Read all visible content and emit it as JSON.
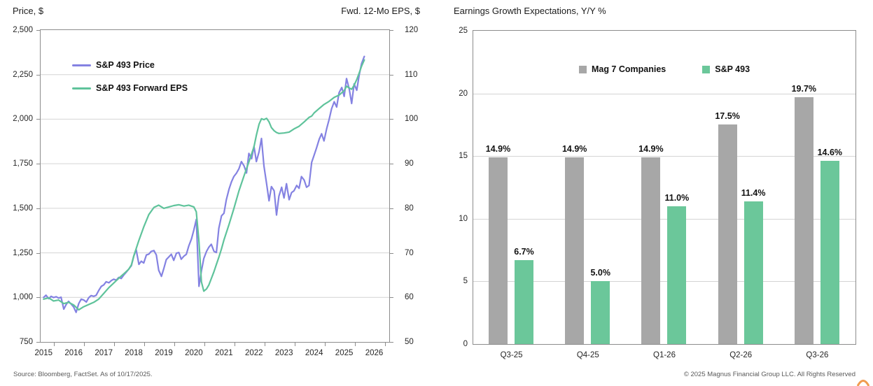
{
  "colors": {
    "price_line": "#8482E2",
    "eps_line": "#5FC39B",
    "bar_gray": "#A7A7A7",
    "bar_green": "#6BC79A",
    "gridline": "#D4D4D4",
    "frame": "#8C8C8C",
    "footer_text": "#595959",
    "logo_orange": "#F09C50"
  },
  "footer": {
    "source": "Source: Bloomberg, FactSet. As of 10/17/2025.",
    "copyright": "© 2025 Magnus Financial Group LLC. All Rights Reserved"
  },
  "chart_data": [
    {
      "type": "line",
      "title_left": "Price, $",
      "title_right": "Fwd. 12-Mo EPS, $",
      "legend_position": "top-left-inside",
      "grid": true,
      "x_range": [
        2014.9,
        2026.5
      ],
      "x_ticks": [
        "2015",
        "2016",
        "2017",
        "2018",
        "2019",
        "2020",
        "2021",
        "2022",
        "2023",
        "2024",
        "2025",
        "2026"
      ],
      "left_axis": {
        "min": 750,
        "max": 2500,
        "tick_values": [
          2500,
          2250,
          2000,
          1750,
          1500,
          1250,
          1000,
          750
        ],
        "tick_labels": [
          "2,500",
          "2,250",
          "2,000",
          "1,750",
          "1,500",
          "1,250",
          "1,000",
          "750"
        ]
      },
      "right_axis": {
        "min": 50,
        "max": 120,
        "tick_values": [
          120,
          110,
          100,
          90,
          80,
          70,
          60,
          50
        ],
        "tick_labels": [
          "120",
          "110",
          "100",
          "90",
          "80",
          "70",
          "60",
          "50"
        ]
      },
      "series": [
        {
          "name": "S&P 493 Price",
          "axis": "left",
          "color": "#8482E2",
          "data": [
            [
              2015.0,
              1000
            ],
            [
              2015.08,
              1012
            ],
            [
              2015.17,
              993
            ],
            [
              2015.25,
              1006
            ],
            [
              2015.33,
              999
            ],
            [
              2015.42,
              1004
            ],
            [
              2015.5,
              996
            ],
            [
              2015.58,
              1001
            ],
            [
              2015.67,
              934
            ],
            [
              2015.75,
              960
            ],
            [
              2015.83,
              978
            ],
            [
              2015.92,
              962
            ],
            [
              2016.0,
              946
            ],
            [
              2016.08,
              916
            ],
            [
              2016.17,
              966
            ],
            [
              2016.25,
              990
            ],
            [
              2016.33,
              986
            ],
            [
              2016.42,
              974
            ],
            [
              2016.5,
              998
            ],
            [
              2016.58,
              1010
            ],
            [
              2016.67,
              1006
            ],
            [
              2016.75,
              1012
            ],
            [
              2016.83,
              1038
            ],
            [
              2016.92,
              1062
            ],
            [
              2017.0,
              1070
            ],
            [
              2017.08,
              1088
            ],
            [
              2017.17,
              1082
            ],
            [
              2017.25,
              1094
            ],
            [
              2017.33,
              1102
            ],
            [
              2017.42,
              1097
            ],
            [
              2017.5,
              1112
            ],
            [
              2017.58,
              1106
            ],
            [
              2017.67,
              1126
            ],
            [
              2017.75,
              1142
            ],
            [
              2017.83,
              1158
            ],
            [
              2017.92,
              1178
            ],
            [
              2018.0,
              1232
            ],
            [
              2018.08,
              1268
            ],
            [
              2018.17,
              1185
            ],
            [
              2018.25,
              1203
            ],
            [
              2018.33,
              1193
            ],
            [
              2018.42,
              1238
            ],
            [
              2018.5,
              1243
            ],
            [
              2018.58,
              1258
            ],
            [
              2018.67,
              1263
            ],
            [
              2018.75,
              1238
            ],
            [
              2018.83,
              1152
            ],
            [
              2018.92,
              1118
            ],
            [
              2019.0,
              1162
            ],
            [
              2019.08,
              1212
            ],
            [
              2019.17,
              1228
            ],
            [
              2019.25,
              1242
            ],
            [
              2019.33,
              1208
            ],
            [
              2019.42,
              1248
            ],
            [
              2019.5,
              1252
            ],
            [
              2019.58,
              1214
            ],
            [
              2019.67,
              1232
            ],
            [
              2019.75,
              1242
            ],
            [
              2019.83,
              1288
            ],
            [
              2019.92,
              1328
            ],
            [
              2020.0,
              1378
            ],
            [
              2020.08,
              1438
            ],
            [
              2020.17,
              1062
            ],
            [
              2020.25,
              1148
            ],
            [
              2020.33,
              1218
            ],
            [
              2020.42,
              1258
            ],
            [
              2020.5,
              1282
            ],
            [
              2020.58,
              1298
            ],
            [
              2020.67,
              1258
            ],
            [
              2020.75,
              1252
            ],
            [
              2020.83,
              1388
            ],
            [
              2020.92,
              1458
            ],
            [
              2021.0,
              1472
            ],
            [
              2021.08,
              1548
            ],
            [
              2021.17,
              1608
            ],
            [
              2021.25,
              1648
            ],
            [
              2021.33,
              1678
            ],
            [
              2021.42,
              1698
            ],
            [
              2021.5,
              1722
            ],
            [
              2021.58,
              1762
            ],
            [
              2021.67,
              1738
            ],
            [
              2021.75,
              1698
            ],
            [
              2021.83,
              1808
            ],
            [
              2021.92,
              1778
            ],
            [
              2022.0,
              1848
            ],
            [
              2022.08,
              1762
            ],
            [
              2022.17,
              1818
            ],
            [
              2022.25,
              1892
            ],
            [
              2022.33,
              1738
            ],
            [
              2022.42,
              1638
            ],
            [
              2022.5,
              1542
            ],
            [
              2022.58,
              1622
            ],
            [
              2022.67,
              1598
            ],
            [
              2022.75,
              1462
            ],
            [
              2022.83,
              1568
            ],
            [
              2022.92,
              1618
            ],
            [
              2023.0,
              1558
            ],
            [
              2023.08,
              1638
            ],
            [
              2023.17,
              1548
            ],
            [
              2023.25,
              1588
            ],
            [
              2023.33,
              1598
            ],
            [
              2023.42,
              1628
            ],
            [
              2023.5,
              1612
            ],
            [
              2023.58,
              1678
            ],
            [
              2023.67,
              1658
            ],
            [
              2023.75,
              1618
            ],
            [
              2023.83,
              1628
            ],
            [
              2023.92,
              1758
            ],
            [
              2024.0,
              1798
            ],
            [
              2024.08,
              1838
            ],
            [
              2024.17,
              1888
            ],
            [
              2024.25,
              1918
            ],
            [
              2024.33,
              1878
            ],
            [
              2024.42,
              1948
            ],
            [
              2024.5,
              1998
            ],
            [
              2024.58,
              2058
            ],
            [
              2024.67,
              2098
            ],
            [
              2024.75,
              2068
            ],
            [
              2024.83,
              2148
            ],
            [
              2024.92,
              2178
            ],
            [
              2025.0,
              2128
            ],
            [
              2025.08,
              2228
            ],
            [
              2025.17,
              2168
            ],
            [
              2025.25,
              2088
            ],
            [
              2025.33,
              2198
            ],
            [
              2025.42,
              2162
            ],
            [
              2025.5,
              2248
            ],
            [
              2025.58,
              2312
            ],
            [
              2025.67,
              2352
            ]
          ]
        },
        {
          "name": "S&P 493 Forward EPS",
          "axis": "right",
          "color": "#5FC39B",
          "data": [
            [
              2015.0,
              59.6
            ],
            [
              2015.17,
              59.9
            ],
            [
              2015.33,
              59.2
            ],
            [
              2015.5,
              59.4
            ],
            [
              2015.67,
              58.6
            ],
            [
              2015.83,
              58.9
            ],
            [
              2016.0,
              58.3
            ],
            [
              2016.17,
              57.2
            ],
            [
              2016.33,
              57.9
            ],
            [
              2016.5,
              58.4
            ],
            [
              2016.67,
              58.9
            ],
            [
              2016.83,
              59.6
            ],
            [
              2017.0,
              60.9
            ],
            [
              2017.17,
              62.2
            ],
            [
              2017.33,
              63.2
            ],
            [
              2017.5,
              64.3
            ],
            [
              2017.67,
              65.3
            ],
            [
              2017.83,
              66.3
            ],
            [
              2017.92,
              67.3
            ],
            [
              2018.0,
              69.3
            ],
            [
              2018.17,
              72.8
            ],
            [
              2018.33,
              75.8
            ],
            [
              2018.5,
              78.6
            ],
            [
              2018.67,
              80.2
            ],
            [
              2018.83,
              80.7
            ],
            [
              2019.0,
              80.0
            ],
            [
              2019.17,
              80.3
            ],
            [
              2019.33,
              80.6
            ],
            [
              2019.5,
              80.8
            ],
            [
              2019.67,
              80.5
            ],
            [
              2019.83,
              80.7
            ],
            [
              2020.0,
              80.3
            ],
            [
              2020.08,
              79.2
            ],
            [
              2020.17,
              72.5
            ],
            [
              2020.25,
              63.5
            ],
            [
              2020.33,
              61.4
            ],
            [
              2020.42,
              61.9
            ],
            [
              2020.5,
              62.8
            ],
            [
              2020.58,
              64.2
            ],
            [
              2020.67,
              65.8
            ],
            [
              2020.75,
              67.4
            ],
            [
              2020.83,
              69.0
            ],
            [
              2020.92,
              70.9
            ],
            [
              2021.0,
              72.9
            ],
            [
              2021.17,
              76.4
            ],
            [
              2021.33,
              79.9
            ],
            [
              2021.5,
              83.9
            ],
            [
              2021.67,
              87.3
            ],
            [
              2021.83,
              90.4
            ],
            [
              2022.0,
              93.8
            ],
            [
              2022.08,
              96.4
            ],
            [
              2022.17,
              98.9
            ],
            [
              2022.25,
              100.1
            ],
            [
              2022.33,
              99.9
            ],
            [
              2022.42,
              100.2
            ],
            [
              2022.5,
              99.4
            ],
            [
              2022.58,
              98.1
            ],
            [
              2022.67,
              97.4
            ],
            [
              2022.75,
              97.0
            ],
            [
              2022.83,
              96.8
            ],
            [
              2023.0,
              96.9
            ],
            [
              2023.17,
              97.1
            ],
            [
              2023.33,
              97.8
            ],
            [
              2023.5,
              98.4
            ],
            [
              2023.67,
              99.4
            ],
            [
              2023.83,
              100.4
            ],
            [
              2023.92,
              100.7
            ],
            [
              2024.0,
              101.4
            ],
            [
              2024.17,
              102.4
            ],
            [
              2024.33,
              103.3
            ],
            [
              2024.5,
              104.0
            ],
            [
              2024.67,
              104.9
            ],
            [
              2024.83,
              105.4
            ],
            [
              2025.0,
              106.4
            ],
            [
              2025.08,
              107.4
            ],
            [
              2025.17,
              107.0
            ],
            [
              2025.25,
              106.7
            ],
            [
              2025.33,
              107.6
            ],
            [
              2025.42,
              108.9
            ],
            [
              2025.5,
              110.4
            ],
            [
              2025.58,
              111.9
            ],
            [
              2025.67,
              113.3
            ]
          ]
        }
      ]
    },
    {
      "type": "bar",
      "title": "Earnings Growth Expectations, Y/Y %",
      "legend_position": "top-center-inside",
      "grid": true,
      "categories": [
        "Q3-25",
        "Q4-25",
        "Q1-26",
        "Q2-26",
        "Q3-26"
      ],
      "series": [
        {
          "name": "Mag 7 Companies",
          "color": "#A7A7A7",
          "values": [
            14.9,
            14.9,
            14.9,
            17.5,
            19.7
          ]
        },
        {
          "name": "S&P 493",
          "color": "#6BC79A",
          "values": [
            6.7,
            5.0,
            11.0,
            11.4,
            14.6
          ]
        }
      ],
      "value_suffix": "%",
      "y_axis": {
        "min": 0,
        "max": 25,
        "tick_values": [
          25,
          20,
          15,
          10,
          5,
          0
        ],
        "tick_labels": [
          "25",
          "20",
          "15",
          "10",
          "5",
          "0"
        ],
        "gridlines": [
          5,
          10,
          15,
          20
        ]
      }
    }
  ]
}
